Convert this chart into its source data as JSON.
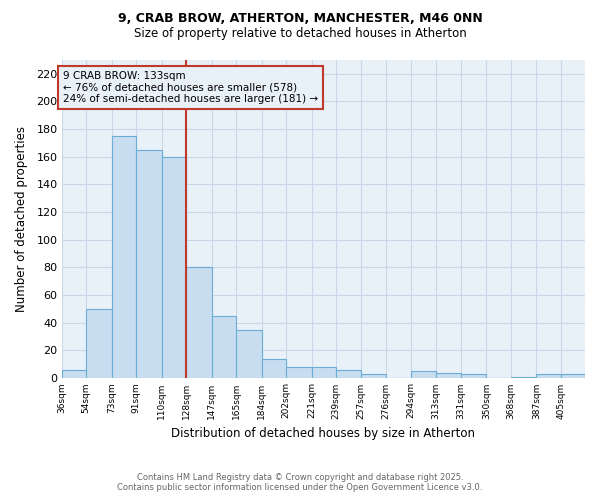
{
  "title1": "9, CRAB BROW, ATHERTON, MANCHESTER, M46 0NN",
  "title2": "Size of property relative to detached houses in Atherton",
  "xlabel": "Distribution of detached houses by size in Atherton",
  "ylabel": "Number of detached properties",
  "bins": [
    36,
    54,
    73,
    91,
    110,
    128,
    147,
    165,
    184,
    202,
    221,
    239,
    257,
    276,
    294,
    313,
    331,
    350,
    368,
    387,
    405
  ],
  "values": [
    6,
    50,
    175,
    165,
    160,
    80,
    45,
    35,
    14,
    8,
    8,
    6,
    3,
    0,
    5,
    4,
    3,
    0,
    1,
    3,
    3
  ],
  "bar_color": "#c8ddf0",
  "bar_edge_color": "#6aaed6",
  "vline_x": 128,
  "vline_color": "#c0392b",
  "annotation_text": "9 CRAB BROW: 133sqm\n← 76% of detached houses are smaller (578)\n24% of semi-detached houses are larger (181) →",
  "annotation_box_color": "#c0392b",
  "ylim": [
    0,
    230
  ],
  "yticks": [
    0,
    20,
    40,
    60,
    80,
    100,
    120,
    140,
    160,
    180,
    200,
    220
  ],
  "footer1": "Contains HM Land Registry data © Crown copyright and database right 2025.",
  "footer2": "Contains public sector information licensed under the Open Government Licence v3.0.",
  "bg_color": "#ffffff",
  "plot_bg_color": "#e8f0f8",
  "grid_color": "#c8d8e8"
}
